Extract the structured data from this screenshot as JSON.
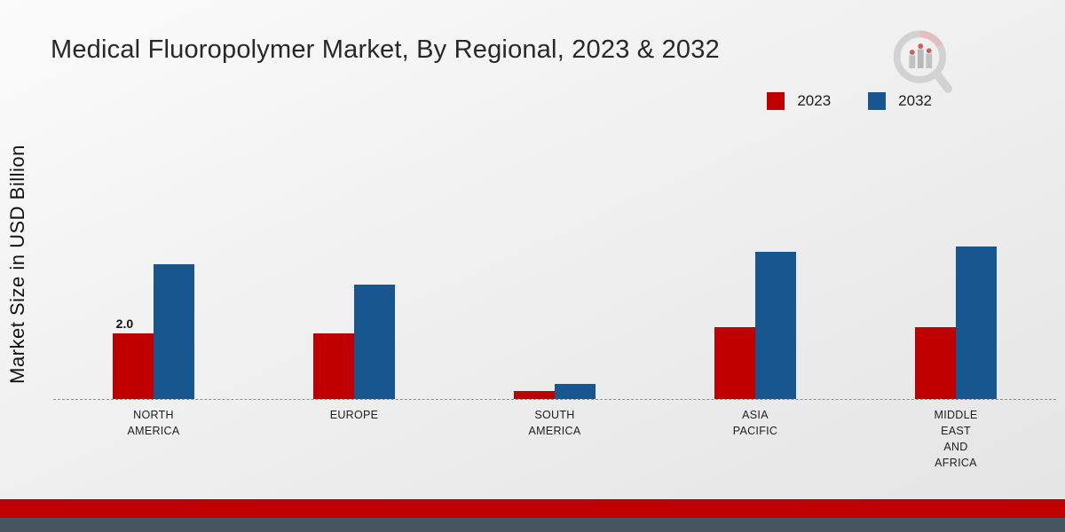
{
  "title": "Medical Fluoropolymer Market, By Regional, 2023 & 2032",
  "y_axis_label": "Market Size in USD Billion",
  "colors": {
    "series_2023": "#c00000",
    "series_2032": "#17568f",
    "footer_red": "#c00000",
    "footer_dark": "#46555f"
  },
  "legend": [
    {
      "label": "2023",
      "color": "#c00000"
    },
    {
      "label": "2032",
      "color": "#17568f"
    }
  ],
  "chart_data": {
    "type": "bar",
    "title": "Medical Fluoropolymer Market, By Regional, 2023 & 2032",
    "xlabel": "",
    "ylabel": "Market Size in USD Billion",
    "ylim": [
      0,
      5
    ],
    "grid": false,
    "legend_position": "top-right",
    "baseline_style": "dashed",
    "categories": [
      "NORTH AMERICA",
      "EUROPE",
      "SOUTH AMERICA",
      "ASIA PACIFIC",
      "MIDDLE EAST AND AFRICA"
    ],
    "category_lines": [
      [
        "NORTH",
        "AMERICA"
      ],
      [
        "EUROPE"
      ],
      [
        "SOUTH",
        "AMERICA"
      ],
      [
        "ASIA",
        "PACIFIC"
      ],
      [
        "MIDDLE",
        "EAST",
        "AND",
        "AFRICA"
      ]
    ],
    "series": [
      {
        "name": "2023",
        "color": "#c00000",
        "values": [
          2.0,
          2.0,
          0.25,
          2.2,
          2.2
        ]
      },
      {
        "name": "2032",
        "color": "#17568f",
        "values": [
          4.1,
          3.5,
          0.45,
          4.5,
          4.65
        ]
      }
    ],
    "data_labels": [
      {
        "category_index": 0,
        "series_index": 0,
        "text": "2.0"
      }
    ]
  }
}
